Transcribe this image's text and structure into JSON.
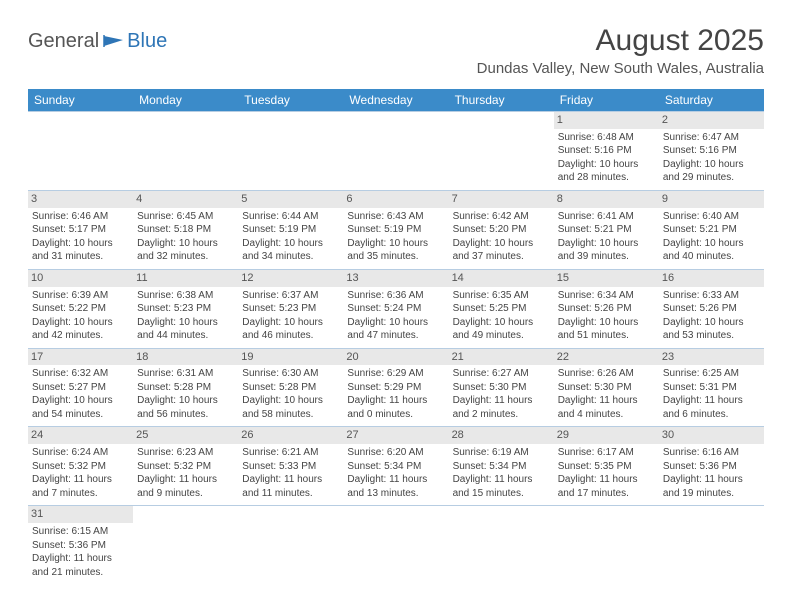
{
  "logo": {
    "general": "General",
    "blue": "Blue"
  },
  "title": {
    "month_year": "August 2025",
    "location": "Dundas Valley, New South Wales, Australia"
  },
  "colors": {
    "header_bg": "#3b8bc9",
    "header_fg": "#ffffff",
    "daynum_bg": "#e8e8e8",
    "row_border": "#b7cde2",
    "text": "#444444",
    "logo_blue": "#2e75b6"
  },
  "dow": [
    "Sunday",
    "Monday",
    "Tuesday",
    "Wednesday",
    "Thursday",
    "Friday",
    "Saturday"
  ],
  "weeks": [
    [
      {
        "n": "",
        "lines": []
      },
      {
        "n": "",
        "lines": []
      },
      {
        "n": "",
        "lines": []
      },
      {
        "n": "",
        "lines": []
      },
      {
        "n": "",
        "lines": []
      },
      {
        "n": "1",
        "lines": [
          "Sunrise: 6:48 AM",
          "Sunset: 5:16 PM",
          "Daylight: 10 hours",
          "and 28 minutes."
        ]
      },
      {
        "n": "2",
        "lines": [
          "Sunrise: 6:47 AM",
          "Sunset: 5:16 PM",
          "Daylight: 10 hours",
          "and 29 minutes."
        ]
      }
    ],
    [
      {
        "n": "3",
        "lines": [
          "Sunrise: 6:46 AM",
          "Sunset: 5:17 PM",
          "Daylight: 10 hours",
          "and 31 minutes."
        ]
      },
      {
        "n": "4",
        "lines": [
          "Sunrise: 6:45 AM",
          "Sunset: 5:18 PM",
          "Daylight: 10 hours",
          "and 32 minutes."
        ]
      },
      {
        "n": "5",
        "lines": [
          "Sunrise: 6:44 AM",
          "Sunset: 5:19 PM",
          "Daylight: 10 hours",
          "and 34 minutes."
        ]
      },
      {
        "n": "6",
        "lines": [
          "Sunrise: 6:43 AM",
          "Sunset: 5:19 PM",
          "Daylight: 10 hours",
          "and 35 minutes."
        ]
      },
      {
        "n": "7",
        "lines": [
          "Sunrise: 6:42 AM",
          "Sunset: 5:20 PM",
          "Daylight: 10 hours",
          "and 37 minutes."
        ]
      },
      {
        "n": "8",
        "lines": [
          "Sunrise: 6:41 AM",
          "Sunset: 5:21 PM",
          "Daylight: 10 hours",
          "and 39 minutes."
        ]
      },
      {
        "n": "9",
        "lines": [
          "Sunrise: 6:40 AM",
          "Sunset: 5:21 PM",
          "Daylight: 10 hours",
          "and 40 minutes."
        ]
      }
    ],
    [
      {
        "n": "10",
        "lines": [
          "Sunrise: 6:39 AM",
          "Sunset: 5:22 PM",
          "Daylight: 10 hours",
          "and 42 minutes."
        ]
      },
      {
        "n": "11",
        "lines": [
          "Sunrise: 6:38 AM",
          "Sunset: 5:23 PM",
          "Daylight: 10 hours",
          "and 44 minutes."
        ]
      },
      {
        "n": "12",
        "lines": [
          "Sunrise: 6:37 AM",
          "Sunset: 5:23 PM",
          "Daylight: 10 hours",
          "and 46 minutes."
        ]
      },
      {
        "n": "13",
        "lines": [
          "Sunrise: 6:36 AM",
          "Sunset: 5:24 PM",
          "Daylight: 10 hours",
          "and 47 minutes."
        ]
      },
      {
        "n": "14",
        "lines": [
          "Sunrise: 6:35 AM",
          "Sunset: 5:25 PM",
          "Daylight: 10 hours",
          "and 49 minutes."
        ]
      },
      {
        "n": "15",
        "lines": [
          "Sunrise: 6:34 AM",
          "Sunset: 5:26 PM",
          "Daylight: 10 hours",
          "and 51 minutes."
        ]
      },
      {
        "n": "16",
        "lines": [
          "Sunrise: 6:33 AM",
          "Sunset: 5:26 PM",
          "Daylight: 10 hours",
          "and 53 minutes."
        ]
      }
    ],
    [
      {
        "n": "17",
        "lines": [
          "Sunrise: 6:32 AM",
          "Sunset: 5:27 PM",
          "Daylight: 10 hours",
          "and 54 minutes."
        ]
      },
      {
        "n": "18",
        "lines": [
          "Sunrise: 6:31 AM",
          "Sunset: 5:28 PM",
          "Daylight: 10 hours",
          "and 56 minutes."
        ]
      },
      {
        "n": "19",
        "lines": [
          "Sunrise: 6:30 AM",
          "Sunset: 5:28 PM",
          "Daylight: 10 hours",
          "and 58 minutes."
        ]
      },
      {
        "n": "20",
        "lines": [
          "Sunrise: 6:29 AM",
          "Sunset: 5:29 PM",
          "Daylight: 11 hours",
          "and 0 minutes."
        ]
      },
      {
        "n": "21",
        "lines": [
          "Sunrise: 6:27 AM",
          "Sunset: 5:30 PM",
          "Daylight: 11 hours",
          "and 2 minutes."
        ]
      },
      {
        "n": "22",
        "lines": [
          "Sunrise: 6:26 AM",
          "Sunset: 5:30 PM",
          "Daylight: 11 hours",
          "and 4 minutes."
        ]
      },
      {
        "n": "23",
        "lines": [
          "Sunrise: 6:25 AM",
          "Sunset: 5:31 PM",
          "Daylight: 11 hours",
          "and 6 minutes."
        ]
      }
    ],
    [
      {
        "n": "24",
        "lines": [
          "Sunrise: 6:24 AM",
          "Sunset: 5:32 PM",
          "Daylight: 11 hours",
          "and 7 minutes."
        ]
      },
      {
        "n": "25",
        "lines": [
          "Sunrise: 6:23 AM",
          "Sunset: 5:32 PM",
          "Daylight: 11 hours",
          "and 9 minutes."
        ]
      },
      {
        "n": "26",
        "lines": [
          "Sunrise: 6:21 AM",
          "Sunset: 5:33 PM",
          "Daylight: 11 hours",
          "and 11 minutes."
        ]
      },
      {
        "n": "27",
        "lines": [
          "Sunrise: 6:20 AM",
          "Sunset: 5:34 PM",
          "Daylight: 11 hours",
          "and 13 minutes."
        ]
      },
      {
        "n": "28",
        "lines": [
          "Sunrise: 6:19 AM",
          "Sunset: 5:34 PM",
          "Daylight: 11 hours",
          "and 15 minutes."
        ]
      },
      {
        "n": "29",
        "lines": [
          "Sunrise: 6:17 AM",
          "Sunset: 5:35 PM",
          "Daylight: 11 hours",
          "and 17 minutes."
        ]
      },
      {
        "n": "30",
        "lines": [
          "Sunrise: 6:16 AM",
          "Sunset: 5:36 PM",
          "Daylight: 11 hours",
          "and 19 minutes."
        ]
      }
    ],
    [
      {
        "n": "31",
        "lines": [
          "Sunrise: 6:15 AM",
          "Sunset: 5:36 PM",
          "Daylight: 11 hours",
          "and 21 minutes."
        ]
      },
      {
        "n": "",
        "lines": []
      },
      {
        "n": "",
        "lines": []
      },
      {
        "n": "",
        "lines": []
      },
      {
        "n": "",
        "lines": []
      },
      {
        "n": "",
        "lines": []
      },
      {
        "n": "",
        "lines": []
      }
    ]
  ]
}
